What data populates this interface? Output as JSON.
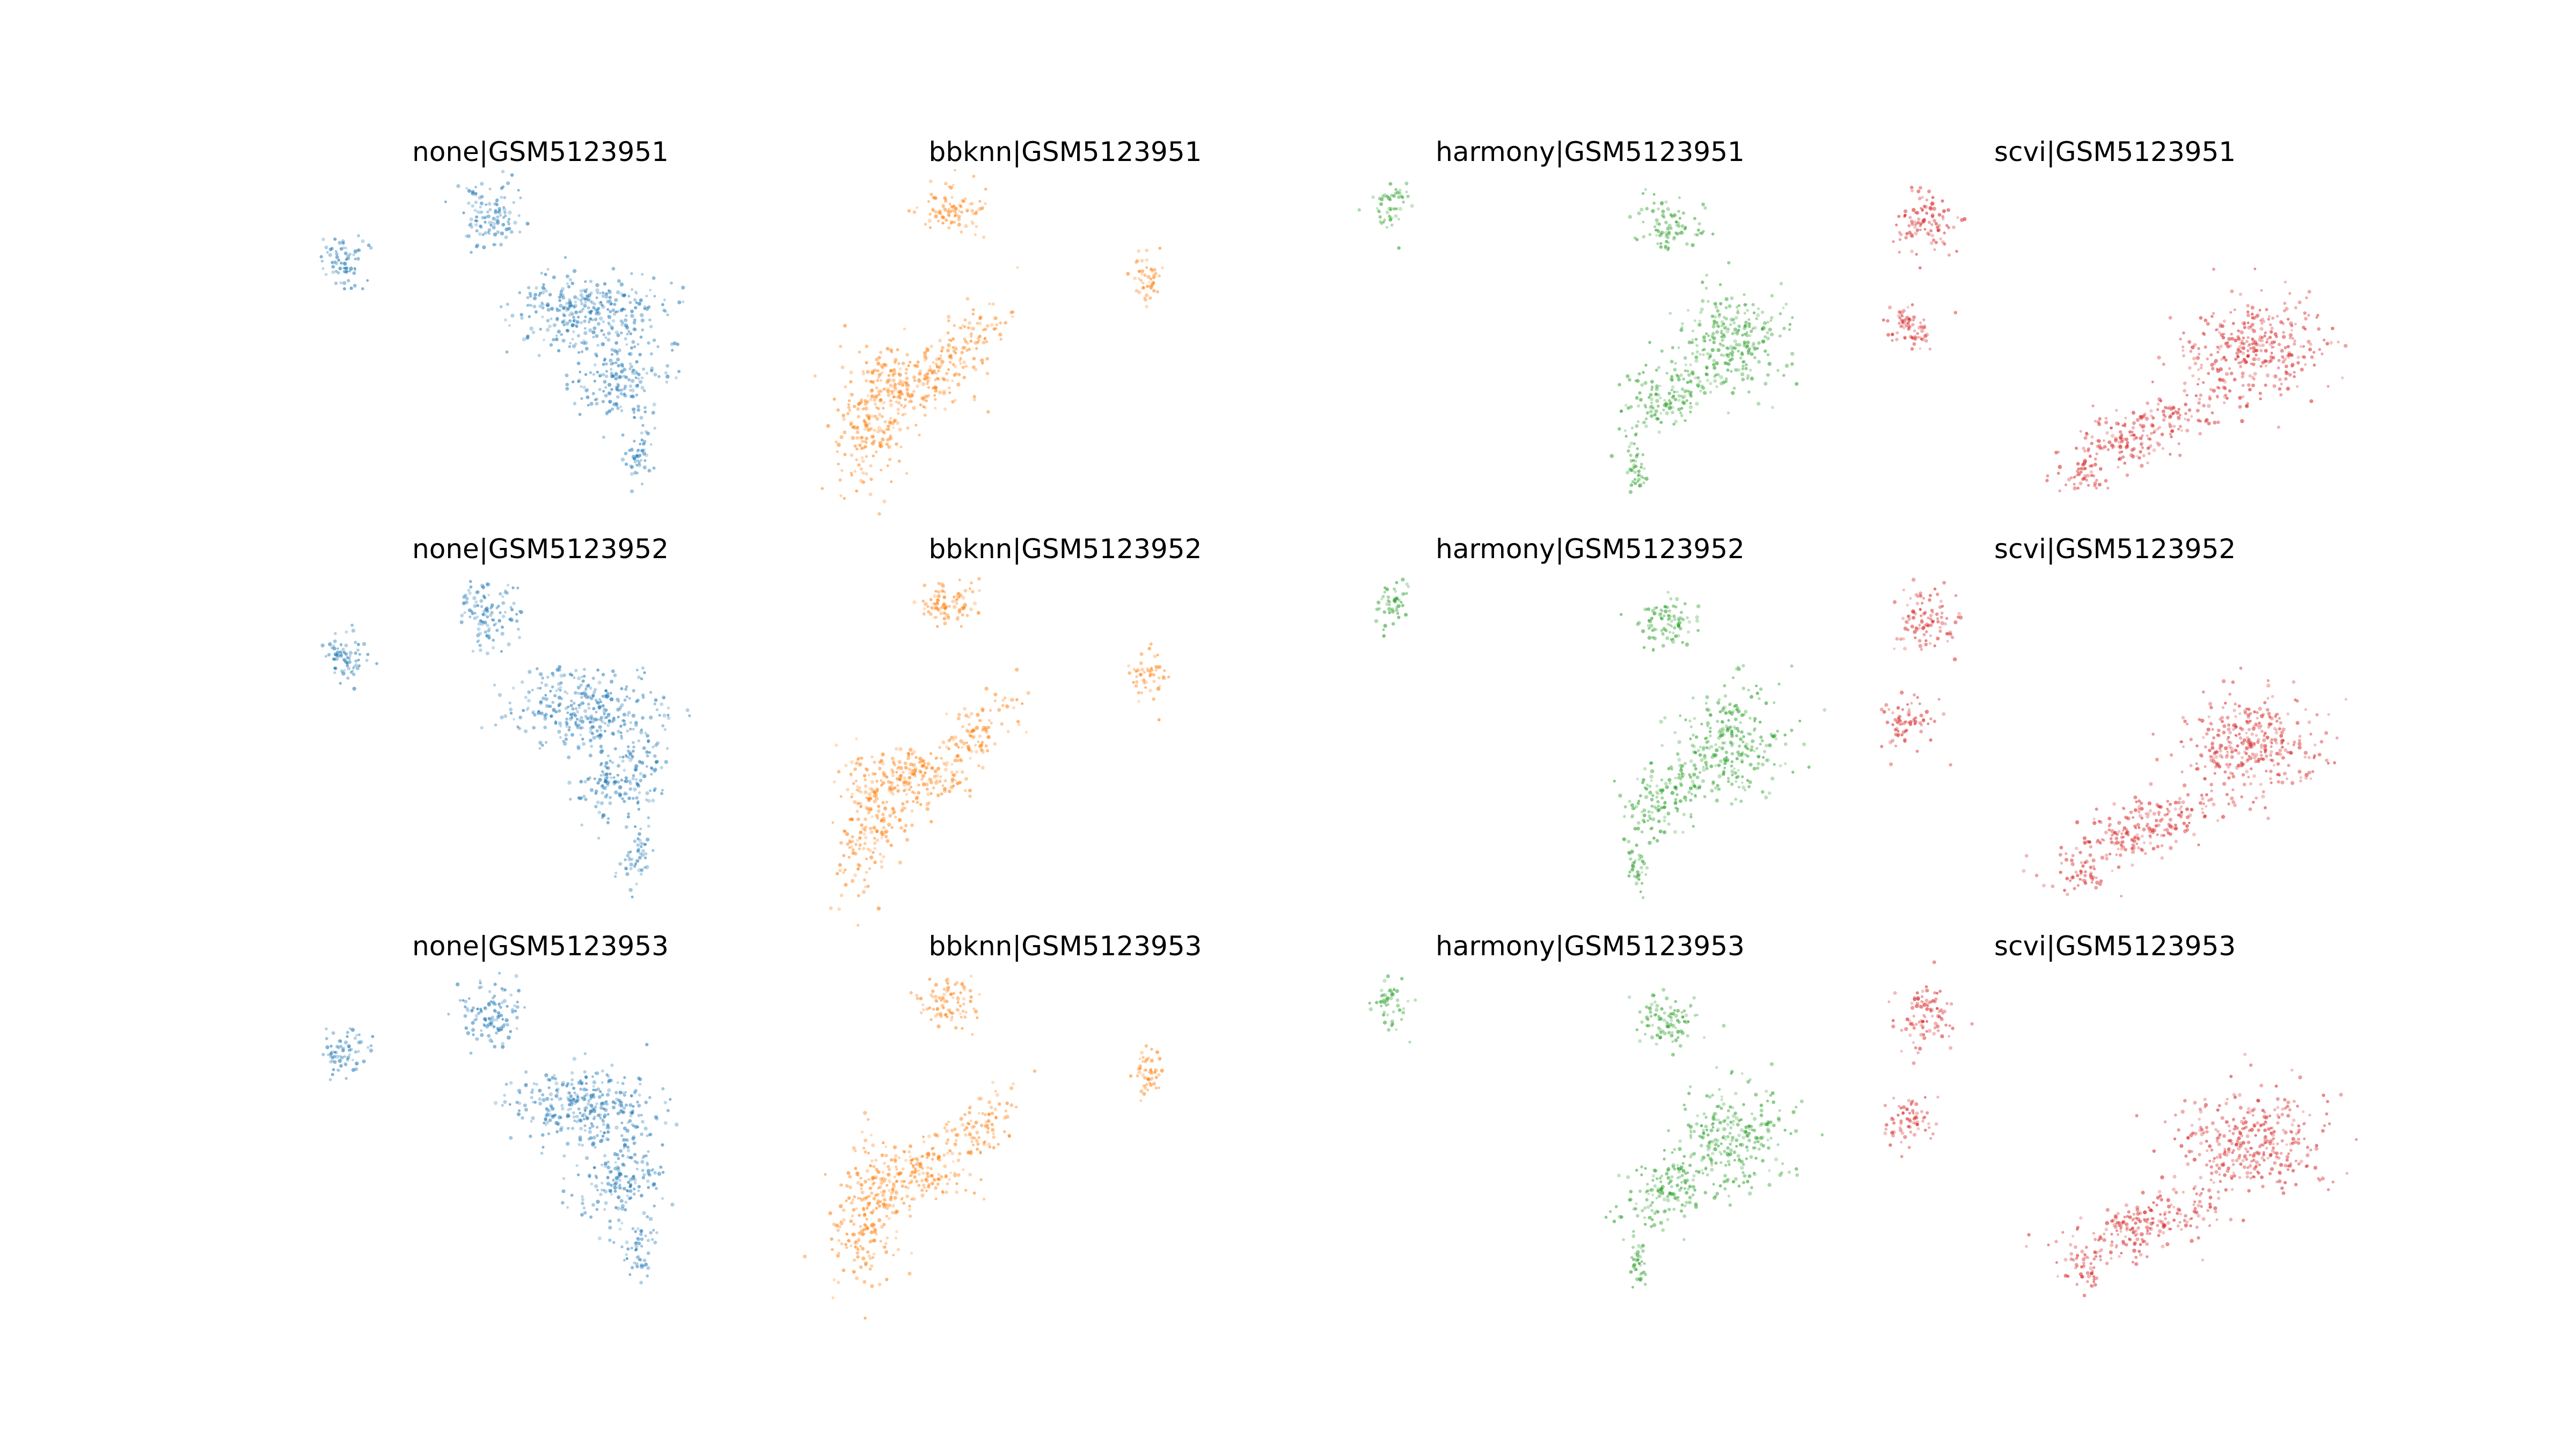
{
  "figure": {
    "background": "#ffffff",
    "rows": 3,
    "cols": 4
  },
  "chart_data": [
    {
      "type": "scatter",
      "title": "none|GSM5123951",
      "method": "none",
      "sample": "GSM5123951",
      "color": "#1f77b4",
      "axes_visible": false,
      "grid": false,
      "legend": "none"
    },
    {
      "type": "scatter",
      "title": "bbknn|GSM5123951",
      "method": "bbknn",
      "sample": "GSM5123951",
      "color": "#ff7f0e",
      "axes_visible": false,
      "grid": false,
      "legend": "none"
    },
    {
      "type": "scatter",
      "title": "harmony|GSM5123951",
      "method": "harmony",
      "sample": "GSM5123951",
      "color": "#2ca02c",
      "axes_visible": false,
      "grid": false,
      "legend": "none"
    },
    {
      "type": "scatter",
      "title": "scvi|GSM5123951",
      "method": "scvi",
      "sample": "GSM5123951",
      "color": "#d62728",
      "axes_visible": false,
      "grid": false,
      "legend": "none"
    },
    {
      "type": "scatter",
      "title": "none|GSM5123952",
      "method": "none",
      "sample": "GSM5123952",
      "color": "#1f77b4",
      "axes_visible": false,
      "grid": false,
      "legend": "none"
    },
    {
      "type": "scatter",
      "title": "bbknn|GSM5123952",
      "method": "bbknn",
      "sample": "GSM5123952",
      "color": "#ff7f0e",
      "axes_visible": false,
      "grid": false,
      "legend": "none"
    },
    {
      "type": "scatter",
      "title": "harmony|GSM5123952",
      "method": "harmony",
      "sample": "GSM5123952",
      "color": "#2ca02c",
      "axes_visible": false,
      "grid": false,
      "legend": "none"
    },
    {
      "type": "scatter",
      "title": "scvi|GSM5123952",
      "method": "scvi",
      "sample": "GSM5123952",
      "color": "#d62728",
      "axes_visible": false,
      "grid": false,
      "legend": "none"
    },
    {
      "type": "scatter",
      "title": "none|GSM5123953",
      "method": "none",
      "sample": "GSM5123953",
      "color": "#1f77b4",
      "axes_visible": false,
      "grid": false,
      "legend": "none"
    },
    {
      "type": "scatter",
      "title": "bbknn|GSM5123953",
      "method": "bbknn",
      "sample": "GSM5123953",
      "color": "#ff7f0e",
      "axes_visible": false,
      "grid": false,
      "legend": "none"
    },
    {
      "type": "scatter",
      "title": "harmony|GSM5123953",
      "method": "harmony",
      "sample": "GSM5123953",
      "color": "#2ca02c",
      "axes_visible": false,
      "grid": false,
      "legend": "none"
    },
    {
      "type": "scatter",
      "title": "scvi|GSM5123953",
      "method": "scvi",
      "sample": "GSM5123953",
      "color": "#d62728",
      "axes_visible": false,
      "grid": false,
      "legend": "none"
    }
  ]
}
